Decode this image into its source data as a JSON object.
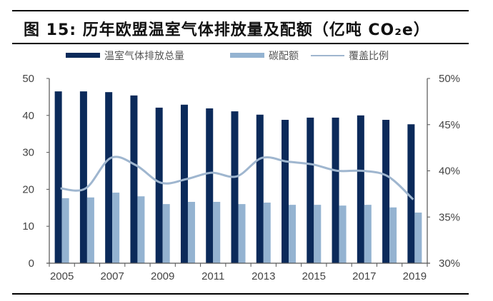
{
  "title": "图 15:  历年欧盟温室气体排放量及配额（亿吨 CO₂e）",
  "chart_data": {
    "type": "bar",
    "title": "历年欧盟温室气体排放量及配额（亿吨 CO₂e）",
    "figure_label": "图 15",
    "categories": [
      "2005",
      "2006",
      "2007",
      "2008",
      "2009",
      "2010",
      "2011",
      "2012",
      "2013",
      "2014",
      "2015",
      "2016",
      "2017",
      "2018",
      "2019"
    ],
    "x_tick_labels": [
      "2005",
      "2007",
      "2009",
      "2011",
      "2013",
      "2015",
      "2017",
      "2019"
    ],
    "series": [
      {
        "name": "温室气体排放总量",
        "type": "bar",
        "axis": "left",
        "color": "#0b2a5a",
        "values": [
          46.5,
          46.5,
          46.3,
          45.4,
          42.1,
          42.9,
          41.9,
          41.1,
          40.2,
          38.8,
          39.4,
          39.4,
          40.0,
          38.8,
          37.6
        ]
      },
      {
        "name": "碳配额",
        "type": "bar",
        "axis": "left",
        "color": "#94b3d1",
        "values": [
          17.6,
          17.8,
          19.1,
          18.1,
          16.0,
          16.6,
          16.6,
          16.0,
          16.4,
          15.8,
          15.8,
          15.6,
          15.8,
          15.1,
          13.7
        ]
      },
      {
        "name": "覆盖比例",
        "type": "line",
        "axis": "right",
        "color": "#9fb6cf",
        "unit": "%",
        "values": [
          38.1,
          38.1,
          41.4,
          40.6,
          38.7,
          39.1,
          39.8,
          39.4,
          41.4,
          41.0,
          40.7,
          40.0,
          40.0,
          39.4,
          36.9
        ]
      }
    ],
    "left_axis": {
      "ylim": [
        0,
        50
      ],
      "ticks": [
        0,
        10,
        20,
        30,
        40,
        50
      ],
      "tick_labels": [
        "0",
        "10",
        "20",
        "30",
        "40",
        "50"
      ]
    },
    "right_axis": {
      "ylim": [
        30,
        50
      ],
      "ticks": [
        30,
        35,
        40,
        45,
        50
      ],
      "tick_labels": [
        "30%",
        "35%",
        "40%",
        "45%",
        "50%"
      ]
    },
    "xlabel": "",
    "ylabel": "",
    "grid": false,
    "legend_position": "top"
  }
}
